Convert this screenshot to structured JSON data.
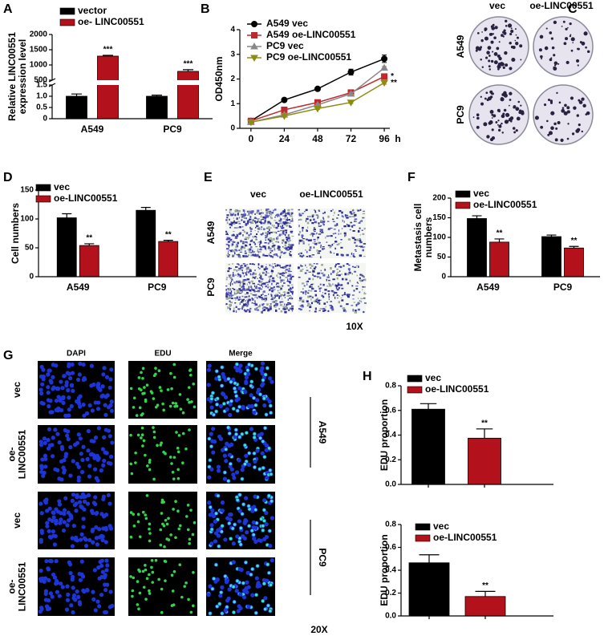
{
  "chart_data": [
    {
      "panel": "A",
      "type": "bar",
      "ylabel": [
        "Relative LINC00551",
        "expression level"
      ],
      "categories": [
        "A549",
        "PC9"
      ],
      "series": [
        {
          "name": "vector",
          "color": "#000000",
          "values": [
            1.0,
            1.0
          ],
          "errors": [
            0.1,
            0.05
          ]
        },
        {
          "name": "oe- LINC00551",
          "color": "#b3111b",
          "values": [
            1290,
            790
          ],
          "errors": [
            25,
            55
          ],
          "significance": [
            "***",
            "***"
          ]
        }
      ],
      "ylim": [
        0,
        2000
      ],
      "axis_break": [
        1.5,
        500
      ],
      "yticks": [
        0,
        0.5,
        {
          "value": 1,
          "label": "1.0"
        },
        1.5,
        500,
        1000,
        1500,
        2000
      ]
    },
    {
      "panel": "B",
      "type": "line",
      "ylabel": "OD450nm",
      "xlabel": "h",
      "x": [
        0,
        24,
        48,
        72,
        96
      ],
      "xlim": [
        -8,
        100
      ],
      "xticks": [
        0,
        24,
        48,
        72,
        96
      ],
      "ylim": [
        0,
        4
      ],
      "yticks": [
        0,
        1,
        2,
        3,
        4
      ],
      "series": [
        {
          "name": "A549 vec",
          "color": "#000000",
          "marker": "circle",
          "values": [
            0.3,
            1.15,
            1.6,
            2.28,
            2.82
          ],
          "errors": [
            0.02,
            0.04,
            0.04,
            0.12,
            0.15
          ]
        },
        {
          "name": "A549 oe-LINC00551",
          "color": "#c0282d",
          "marker": "square",
          "values": [
            0.3,
            0.75,
            1.05,
            1.45,
            2.1
          ],
          "errors": [
            0.02,
            0.03,
            0.04,
            0.06,
            0.1
          ],
          "significance": "*"
        },
        {
          "name": "PC9 vec",
          "color": "#888888",
          "marker": "triangle-up",
          "values": [
            0.25,
            0.55,
            0.95,
            1.4,
            2.45
          ],
          "errors": [
            0.02,
            0.03,
            0.04,
            0.05,
            0.06
          ]
        },
        {
          "name": "PC9 oe-LINC00551",
          "color": "#8c8c14",
          "marker": "triangle-down",
          "values": [
            0.25,
            0.5,
            0.8,
            1.05,
            1.85
          ],
          "errors": [
            0.02,
            0.03,
            0.03,
            0.04,
            0.06
          ],
          "significance": "**"
        }
      ]
    },
    {
      "panel": "D",
      "type": "bar",
      "ylabel": "Cell numbers",
      "categories": [
        "A549",
        "PC9"
      ],
      "series": [
        {
          "name": "vec",
          "color": "#000000",
          "values": [
            102,
            115
          ],
          "errors": [
            7,
            5
          ]
        },
        {
          "name": "oe-LINC00551",
          "color": "#b3111b",
          "values": [
            54,
            61
          ],
          "errors": [
            3,
            2
          ],
          "significance": [
            "**",
            "**"
          ]
        }
      ],
      "ylim": [
        0,
        150
      ],
      "yticks": [
        0,
        50,
        100,
        150
      ]
    },
    {
      "panel": "F",
      "type": "bar",
      "ylabel": [
        "Metastasis cell",
        "numbers"
      ],
      "categories": [
        "A549",
        "PC9"
      ],
      "series": [
        {
          "name": "vec",
          "color": "#000000",
          "values": [
            148,
            102
          ],
          "errors": [
            7,
            4
          ]
        },
        {
          "name": "oe-LINC00551",
          "color": "#b3111b",
          "values": [
            88,
            73
          ],
          "errors": [
            8,
            4
          ],
          "significance": [
            "**",
            "**"
          ]
        }
      ],
      "ylim": [
        0,
        200
      ],
      "yticks": [
        0,
        50,
        100,
        150,
        200
      ]
    },
    {
      "panel": "H",
      "type": "bar",
      "ylabel": "EDU proportion",
      "categories": [
        null
      ],
      "series": [
        {
          "name": "vec",
          "color": "#000000",
          "values": [
            0.61
          ],
          "errors": [
            0.045
          ]
        },
        {
          "name": "oe-LINC00551",
          "color": "#b3111b",
          "values": [
            0.375
          ],
          "errors": [
            0.075
          ],
          "significance": [
            "**"
          ]
        }
      ],
      "ylim": [
        0,
        0.8
      ],
      "yticks": [
        {
          "value": 0,
          "label": "0.0"
        },
        0.2,
        0.4,
        0.6,
        0.8
      ]
    },
    {
      "type": "bar",
      "ylabel": "EDU proportion",
      "categories": [
        null
      ],
      "series": [
        {
          "name": "vec",
          "color": "#000000",
          "values": [
            0.465
          ],
          "errors": [
            0.07
          ]
        },
        {
          "name": "oe-LINC00551",
          "color": "#b3111b",
          "values": [
            0.17
          ],
          "errors": [
            0.045
          ],
          "significance": [
            "**"
          ]
        }
      ],
      "ylim": [
        0,
        0.8
      ],
      "yticks": [
        {
          "value": 0,
          "label": "0.0"
        },
        0.2,
        0.4,
        0.6,
        0.8
      ]
    }
  ],
  "image_panels": [
    {
      "panel": "C",
      "column_labels": [
        "vec",
        "oe-LINC00551"
      ],
      "row_labels": [
        [
          "A549"
        ],
        [
          "PC9"
        ]
      ]
    },
    {
      "panel": "E",
      "column_labels": [
        "vec",
        "oe-LINC00551"
      ],
      "row_labels": [
        [
          "A549"
        ],
        [
          "PC9"
        ]
      ],
      "magnification": "10X"
    },
    {
      "panel": "G",
      "column_labels": [
        "DAPI",
        "EDU",
        "Merge"
      ],
      "row_labels": [
        [
          "vec"
        ],
        [
          "oe-",
          "LINC00551"
        ],
        [
          "vec"
        ],
        [
          "oe-",
          "LINC00551"
        ]
      ],
      "group_labels": [
        "A549",
        "PC9"
      ],
      "magnification": "20X"
    }
  ]
}
